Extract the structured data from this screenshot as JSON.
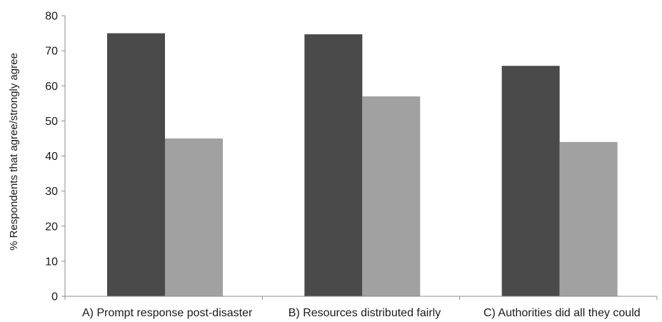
{
  "chart_data": {
    "type": "bar",
    "categories": [
      "A) Prompt response post-disaster",
      "B) Resources distributed fairly",
      "C) Authorities did all they could"
    ],
    "series": [
      {
        "values": [
          75,
          74.7,
          65.7
        ],
        "color": "#4a4a4a"
      },
      {
        "values": [
          45,
          57,
          44
        ],
        "color": "#a1a1a1"
      }
    ],
    "ylabel": "% Respondents that agree/strongly agree",
    "ylim": [
      0,
      80
    ],
    "yticks": [
      0,
      10,
      20,
      30,
      40,
      50,
      60,
      70,
      80
    ],
    "grid": false,
    "legend": "none"
  }
}
